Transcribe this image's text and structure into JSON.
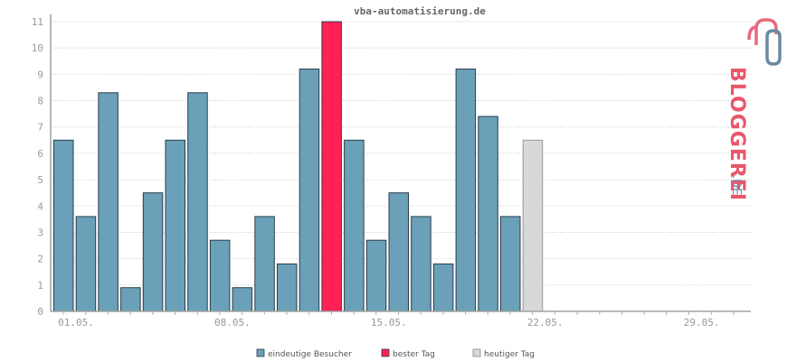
{
  "chart_data": {
    "type": "bar",
    "title": "vba-automatisierung.de",
    "xlabel": "",
    "ylabel": "",
    "ylim": [
      0,
      11
    ],
    "yticks": [
      0,
      1,
      2,
      3,
      4,
      5,
      6,
      7,
      8,
      9,
      10,
      11
    ],
    "x_tick_labels": [
      "01.05.",
      "08.05.",
      "15.05.",
      "22.05.",
      "29.05."
    ],
    "days_in_axis": 31,
    "grid": true,
    "series": [
      {
        "name": "eindeutige Besucher",
        "values": [
          6.5,
          3.6,
          8.3,
          0.9,
          4.5,
          6.5,
          8.3,
          2.7,
          0.9,
          3.6,
          1.8,
          9.2,
          11,
          6.5,
          2.7,
          4.5,
          3.6,
          1.8,
          9.2,
          7.4,
          3.6,
          6.5
        ]
      }
    ],
    "best_day_index": 12,
    "today_index": 21
  },
  "legend": [
    {
      "label": "eindeutige Besucher",
      "color": "#6aa1b9"
    },
    {
      "label": "bester Tag",
      "color": "#ff2156"
    },
    {
      "label": "heutiger Tag",
      "color": "#d8d8d8"
    }
  ],
  "colors": {
    "bar": "#6aa1b9",
    "best": "#ff2156",
    "today": "#d8d8d8",
    "bar_border": "#2a3d4a"
  },
  "brand": {
    "text_main": "BLOGGEREI",
    "text_suffix": ".DE"
  }
}
